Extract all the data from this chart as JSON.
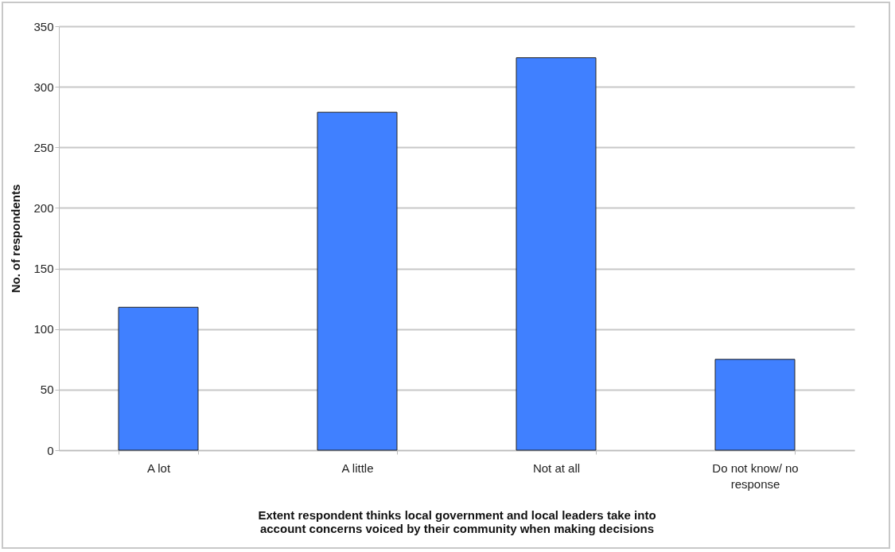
{
  "chart_data": {
    "type": "bar",
    "xlabel": "Extent respondent thinks local government and local leaders take into account concerns voiced by their community when making decisions",
    "ylabel": "No. of respondents",
    "categories": [
      "A lot",
      "A little",
      "Not at all",
      "Do not know/ no response"
    ],
    "values": [
      118,
      279,
      324,
      75
    ],
    "color": "#4080ff",
    "ylim": [
      0,
      350
    ],
    "yticks": [
      0,
      50,
      100,
      150,
      200,
      250,
      300,
      350
    ],
    "grid": "y"
  }
}
